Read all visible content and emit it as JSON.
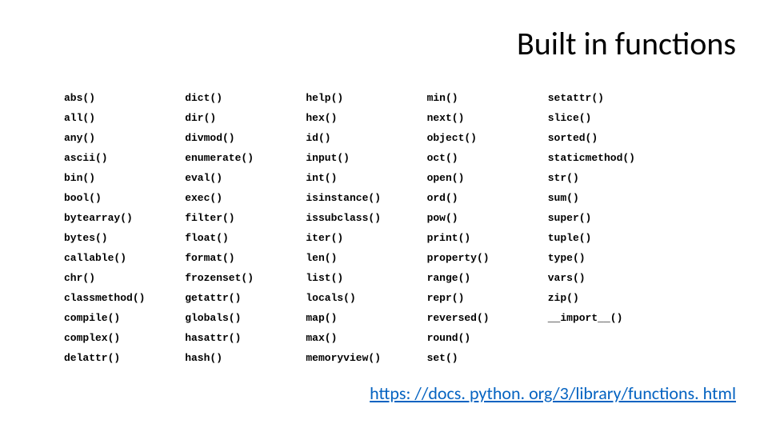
{
  "title": "Built in functions",
  "link_text": "https: //docs. python. org/3/library/functions. html",
  "table": {
    "type": "table",
    "n_cols": 5,
    "n_rows": 14,
    "cell_font_family": "Courier New",
    "cell_font_size_pt": 10,
    "cell_font_weight": "bold",
    "cell_color": "#000000",
    "background_color": "#ffffff",
    "rows": [
      [
        "abs()",
        "dict()",
        "help()",
        "min()",
        "setattr()"
      ],
      [
        "all()",
        "dir()",
        "hex()",
        "next()",
        "slice()"
      ],
      [
        "any()",
        "divmod()",
        "id()",
        "object()",
        "sorted()"
      ],
      [
        "ascii()",
        "enumerate()",
        "input()",
        "oct()",
        "staticmethod()"
      ],
      [
        "bin()",
        "eval()",
        "int()",
        "open()",
        "str()"
      ],
      [
        "bool()",
        "exec()",
        "isinstance()",
        "ord()",
        "sum()"
      ],
      [
        "bytearray()",
        "filter()",
        "issubclass()",
        "pow()",
        "super()"
      ],
      [
        "bytes()",
        "float()",
        "iter()",
        "print()",
        "tuple()"
      ],
      [
        "callable()",
        "format()",
        "len()",
        "property()",
        "type()"
      ],
      [
        "chr()",
        "frozenset()",
        "list()",
        "range()",
        "vars()"
      ],
      [
        "classmethod()",
        "getattr()",
        "locals()",
        "repr()",
        "zip()"
      ],
      [
        "compile()",
        "globals()",
        "map()",
        "reversed()",
        "__import__()"
      ],
      [
        "complex()",
        "hasattr()",
        "max()",
        "round()",
        ""
      ],
      [
        "delattr()",
        "hash()",
        "memoryview()",
        "set()",
        ""
      ]
    ],
    "col_widths_pct": [
      18,
      18,
      18,
      18,
      28
    ]
  },
  "title_style": {
    "font_size_pt": 40,
    "font_weight": 400,
    "color": "#000000"
  },
  "link_style": {
    "font_size_pt": 22,
    "color": "#0563c1",
    "underline": true
  }
}
